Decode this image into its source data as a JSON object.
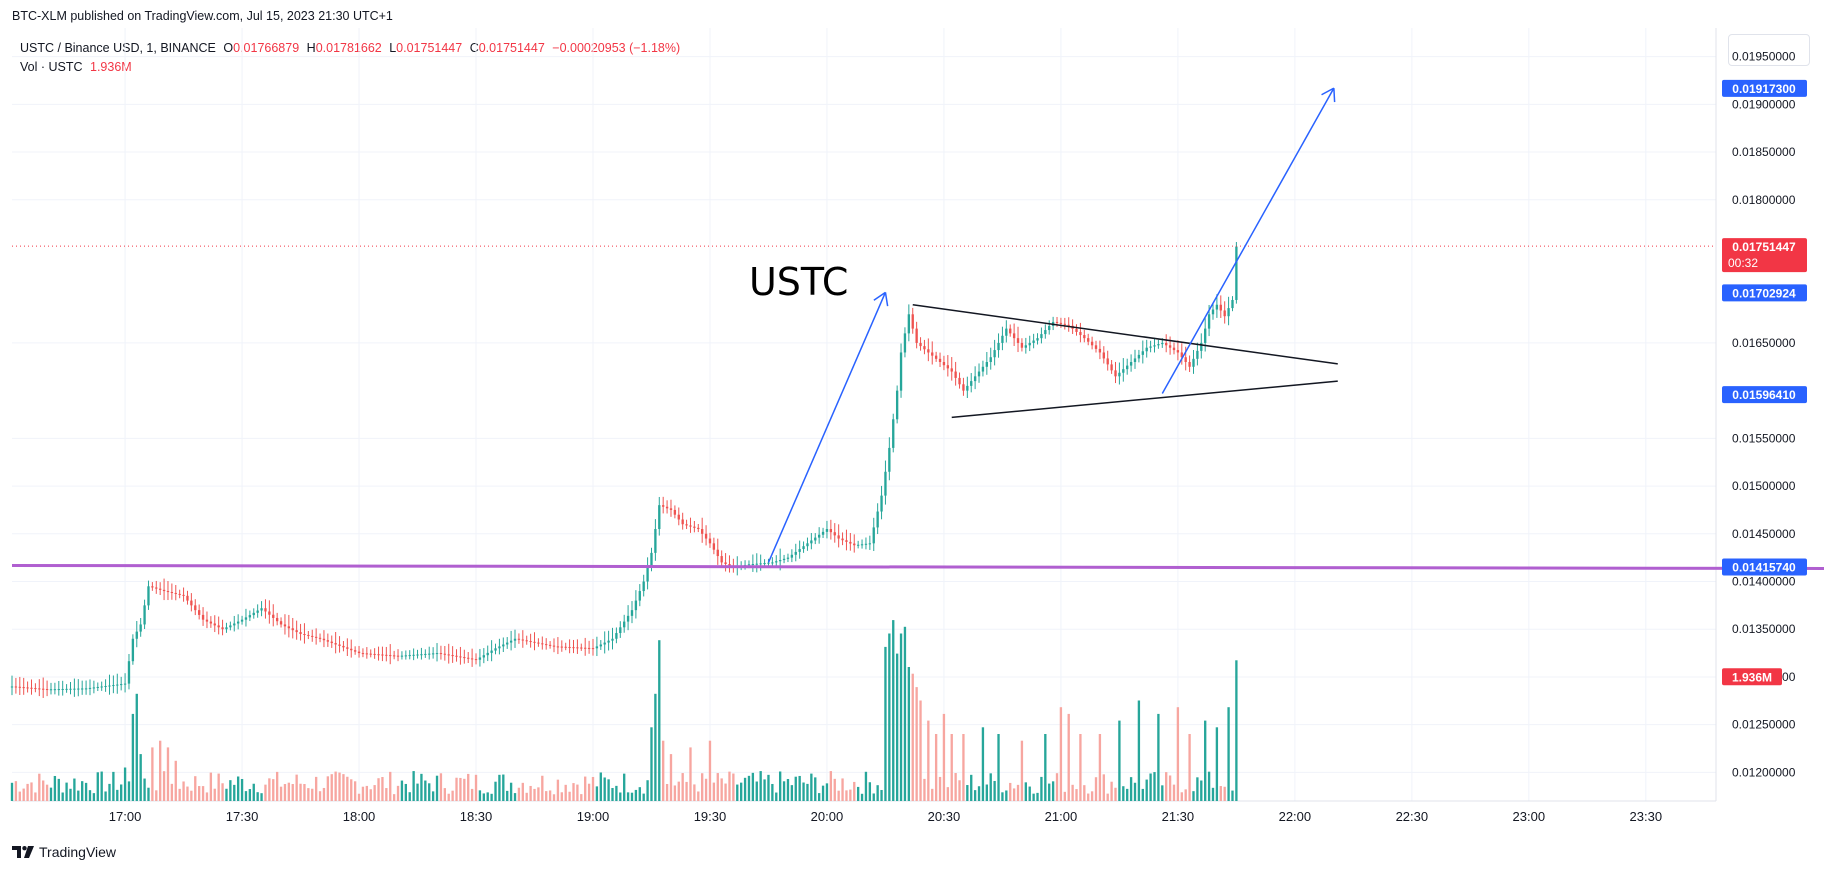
{
  "header": {
    "published": "BTC-XLM published on TradingView.com, Jul 15, 2023 21:30 UTC+1"
  },
  "legend": {
    "symbol": "USTC / Binance USD, 1, BINANCE",
    "o_label": "O",
    "o_value": "0.01766879",
    "h_label": "H",
    "h_value": "0.01781662",
    "l_label": "L",
    "l_value": "0.01751447",
    "c_label": "C",
    "c_value": "0.01751447",
    "change": "−0.00020953 (−1.18%)",
    "vol_label": "Vol · USTC",
    "vol_value": "1.936M"
  },
  "footer": {
    "brand": "TradingView",
    "logo_text": "17"
  },
  "colors": {
    "up": "#26a69a",
    "down": "#ef5350",
    "vol_up": "#26a69a",
    "vol_down": "#f7a6a0",
    "blue": "#2962ff",
    "red": "#f23645",
    "purple": "#b05fd0",
    "grid": "#f0f3fa",
    "text": "#131722"
  },
  "chart_data": {
    "type": "candlestick",
    "symbol": "USTC / Binance USD",
    "interval": "1",
    "exchange": "BINANCE",
    "ylim": [
      0.0117,
      0.0198
    ],
    "y_ticks": [
      "0.01950000",
      "0.01900000",
      "0.01850000",
      "0.01800000",
      "0.01650000",
      "0.01550000",
      "0.01500000",
      "0.01450000",
      "0.01400000",
      "0.01350000",
      "0.01300000",
      "0.01250000",
      "0.01200000"
    ],
    "x_ticks": [
      "17:00",
      "17:30",
      "18:00",
      "18:30",
      "19:00",
      "19:30",
      "20:00",
      "20:30",
      "21:00",
      "21:30",
      "22:00",
      "22:30",
      "23:00",
      "23:30"
    ],
    "x_tick_minutes": [
      1020,
      1050,
      1080,
      1110,
      1140,
      1170,
      1200,
      1230,
      1260,
      1290,
      1320,
      1350,
      1380,
      1410
    ],
    "x_range_minutes": [
      991,
      1428
    ],
    "last_bar_minute": 1305,
    "price_path": [
      [
        991,
        0.0129
      ],
      [
        1000,
        0.01287
      ],
      [
        1010,
        0.01288
      ],
      [
        1020,
        0.01293
      ],
      [
        1022,
        0.0134
      ],
      [
        1024,
        0.01355
      ],
      [
        1026,
        0.01395
      ],
      [
        1030,
        0.0139
      ],
      [
        1035,
        0.01385
      ],
      [
        1040,
        0.0136
      ],
      [
        1045,
        0.0135
      ],
      [
        1050,
        0.0136
      ],
      [
        1055,
        0.01372
      ],
      [
        1060,
        0.01355
      ],
      [
        1065,
        0.01345
      ],
      [
        1070,
        0.0134
      ],
      [
        1080,
        0.01325
      ],
      [
        1090,
        0.01322
      ],
      [
        1100,
        0.01325
      ],
      [
        1110,
        0.01318
      ],
      [
        1115,
        0.0133
      ],
      [
        1120,
        0.0134
      ],
      [
        1130,
        0.01332
      ],
      [
        1140,
        0.0133
      ],
      [
        1145,
        0.0134
      ],
      [
        1150,
        0.0137
      ],
      [
        1153,
        0.014
      ],
      [
        1155,
        0.0143
      ],
      [
        1157,
        0.0148
      ],
      [
        1160,
        0.01475
      ],
      [
        1163,
        0.0146
      ],
      [
        1167,
        0.01455
      ],
      [
        1170,
        0.0144
      ],
      [
        1173,
        0.0142
      ],
      [
        1176,
        0.01415
      ],
      [
        1180,
        0.01418
      ],
      [
        1186,
        0.0142
      ],
      [
        1190,
        0.01425
      ],
      [
        1195,
        0.0144
      ],
      [
        1200,
        0.01455
      ],
      [
        1203,
        0.01445
      ],
      [
        1207,
        0.01438
      ],
      [
        1211,
        0.0144
      ],
      [
        1214,
        0.0149
      ],
      [
        1216,
        0.0154
      ],
      [
        1218,
        0.016
      ],
      [
        1219,
        0.0164
      ],
      [
        1221,
        0.0168
      ],
      [
        1223,
        0.0165
      ],
      [
        1226,
        0.0164
      ],
      [
        1229,
        0.0163
      ],
      [
        1232,
        0.0162
      ],
      [
        1235,
        0.016
      ],
      [
        1238,
        0.01615
      ],
      [
        1242,
        0.01635
      ],
      [
        1246,
        0.01665
      ],
      [
        1250,
        0.01645
      ],
      [
        1254,
        0.01655
      ],
      [
        1258,
        0.01672
      ],
      [
        1262,
        0.01668
      ],
      [
        1266,
        0.01655
      ],
      [
        1270,
        0.0164
      ],
      [
        1274,
        0.01615
      ],
      [
        1278,
        0.0163
      ],
      [
        1282,
        0.01645
      ],
      [
        1286,
        0.0165
      ],
      [
        1290,
        0.0164
      ],
      [
        1293,
        0.01625
      ],
      [
        1296,
        0.0165
      ],
      [
        1298,
        0.0168
      ],
      [
        1300,
        0.0169
      ],
      [
        1302,
        0.01678
      ],
      [
        1304,
        0.01695
      ],
      [
        1305,
        0.01751
      ]
    ],
    "volume": {
      "ylim": [
        0,
        3.0
      ],
      "unit": "M",
      "bars": [
        [
          1020,
          0.5
        ],
        [
          1022,
          1.3
        ],
        [
          1023,
          1.6
        ],
        [
          1024,
          0.7
        ],
        [
          1027,
          0.8
        ],
        [
          1029,
          0.9
        ],
        [
          1031,
          0.8
        ],
        [
          1033,
          0.6
        ],
        [
          1155,
          1.1
        ],
        [
          1156,
          1.6
        ],
        [
          1157,
          2.4
        ],
        [
          1158,
          0.9
        ],
        [
          1160,
          0.7
        ],
        [
          1165,
          0.8
        ],
        [
          1170,
          0.9
        ],
        [
          1215,
          2.3
        ],
        [
          1216,
          2.5
        ],
        [
          1217,
          2.7
        ],
        [
          1218,
          2.2
        ],
        [
          1219,
          2.5
        ],
        [
          1220,
          2.6
        ],
        [
          1221,
          2.0
        ],
        [
          1222,
          1.9
        ],
        [
          1223,
          1.7
        ],
        [
          1224,
          1.5
        ],
        [
          1226,
          1.2
        ],
        [
          1228,
          1.0
        ],
        [
          1230,
          1.3
        ],
        [
          1232,
          1.0
        ],
        [
          1235,
          1.0
        ],
        [
          1240,
          1.1
        ],
        [
          1244,
          1.0
        ],
        [
          1250,
          0.9
        ],
        [
          1256,
          1.0
        ],
        [
          1260,
          1.4
        ],
        [
          1262,
          1.3
        ],
        [
          1265,
          1.0
        ],
        [
          1270,
          1.0
        ],
        [
          1275,
          1.2
        ],
        [
          1280,
          1.5
        ],
        [
          1285,
          1.3
        ],
        [
          1290,
          1.4
        ],
        [
          1293,
          1.0
        ],
        [
          1297,
          1.2
        ],
        [
          1300,
          1.1
        ],
        [
          1303,
          1.4
        ],
        [
          1305,
          2.1
        ]
      ]
    }
  },
  "annotations": {
    "title_text": "USTC",
    "price_labels": [
      {
        "price": 0.019173,
        "text": "0.01917300",
        "color": "#2962ff"
      },
      {
        "price": 0.01751447,
        "text": "0.01751447",
        "sub": "00:32",
        "color": "#f23645"
      },
      {
        "price": 0.01702924,
        "text": "0.01702924",
        "color": "#2962ff"
      },
      {
        "price": 0.0159641,
        "text": "0.01596410",
        "color": "#2962ff"
      },
      {
        "price": 0.0141574,
        "text": "0.01415740",
        "color": "#2962ff"
      }
    ],
    "volume_label": "1.936M",
    "horizontal_level": 0.0141574,
    "current_price": 0.01751447,
    "triangle_upper": [
      [
        1222,
        0.0169
      ],
      [
        1331,
        0.01628
      ]
    ],
    "triangle_lower": [
      [
        1232,
        0.01572
      ],
      [
        1331,
        0.0161
      ]
    ],
    "arrow1": [
      [
        1185,
        0.0142
      ],
      [
        1215,
        0.01703
      ]
    ],
    "arrow2": [
      [
        1286,
        0.01597
      ],
      [
        1330,
        0.01917
      ]
    ]
  }
}
